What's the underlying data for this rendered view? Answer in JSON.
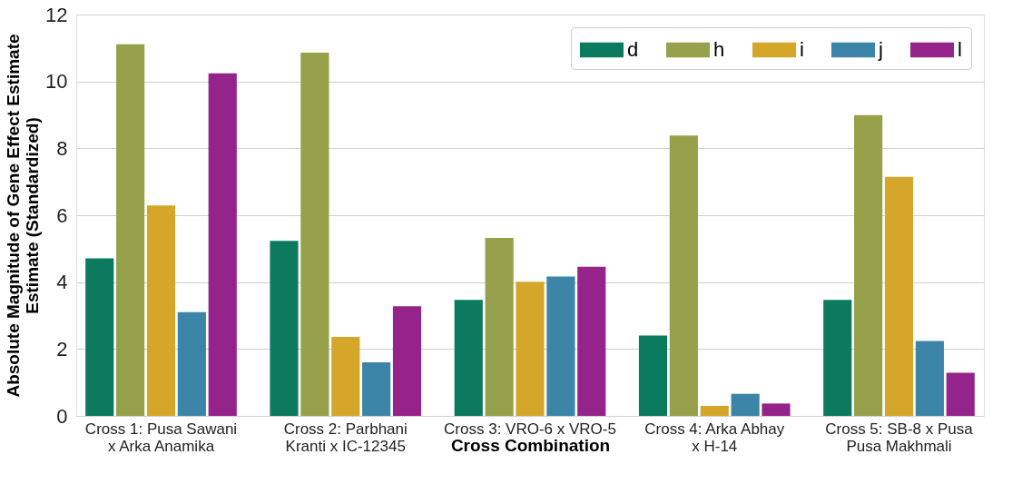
{
  "chart_data": {
    "type": "bar",
    "xlabel": "Cross Combination",
    "ylabel": "Absolute Magnitude of Gene Effect Estimate Estimate (Standardized)",
    "categories": [
      "Cross 1: Pusa Sawani x Arka Anamika",
      "Cross 2: Parbhani Kranti x IC-12345",
      "Cross 3: VRO-6 x VRO-5",
      "Cross 4: Arka Abhay x H-14",
      "Cross 5: SB-8 x Pusa Pusa Makhmali"
    ],
    "series": [
      {
        "name": "d",
        "color": "#0b7a5e",
        "values": [
          4.71,
          5.23,
          3.47,
          2.4,
          3.47
        ]
      },
      {
        "name": "h",
        "color": "#97a04a",
        "values": [
          11.11,
          10.86,
          5.32,
          8.38,
          8.99
        ]
      },
      {
        "name": "i",
        "color": "#d4a72a",
        "values": [
          6.29,
          2.36,
          4.01,
          0.3,
          7.15
        ]
      },
      {
        "name": "j",
        "color": "#3c85a8",
        "values": [
          3.1,
          1.6,
          4.17,
          0.66,
          2.24
        ]
      },
      {
        "name": "l",
        "color": "#942489",
        "values": [
          10.24,
          3.28,
          4.46,
          0.37,
          1.29
        ]
      }
    ],
    "ylim": [
      0,
      12
    ],
    "yticks": [
      0,
      2,
      4,
      6,
      8,
      10,
      12
    ],
    "grid": "y",
    "legend": "top right"
  }
}
